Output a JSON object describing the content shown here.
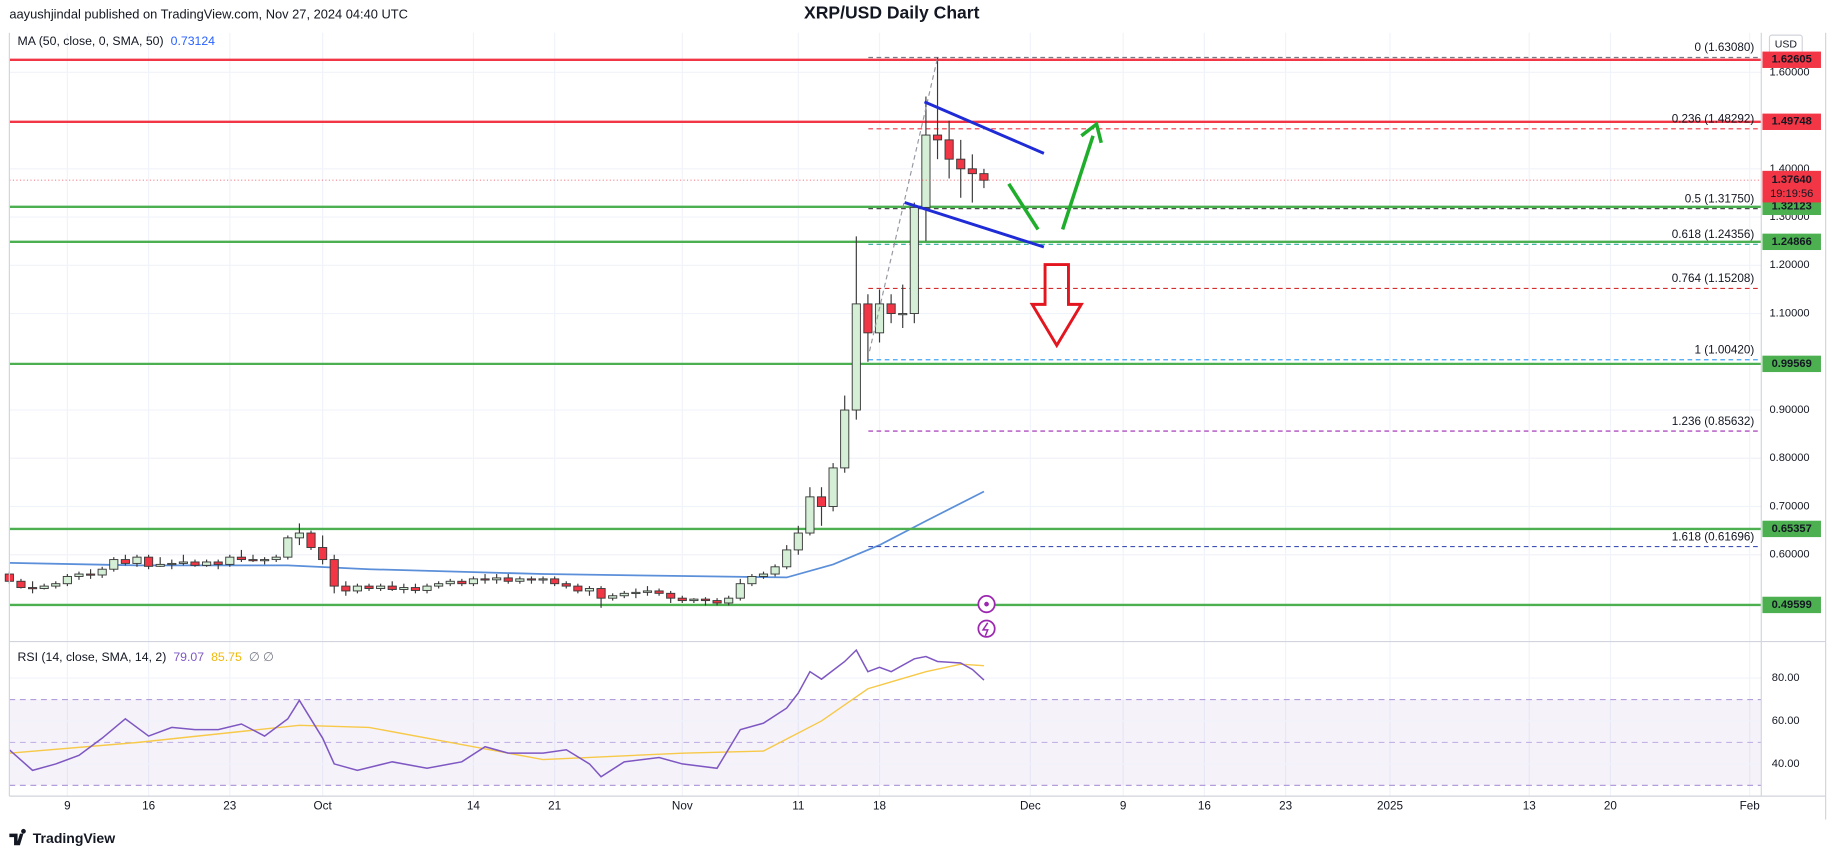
{
  "header": {
    "published": "aayushjindal published on TradingView.com, Nov 27, 2024 04:40 UTC",
    "currency": "USD",
    "brand": "TradingView"
  },
  "chart_data": {
    "type": "candlestick",
    "title": "XRP/USD Daily Chart",
    "grid": true,
    "up_color": "#d4efd6",
    "down_color": "#f23645",
    "outline_color": "#3a3a3a",
    "xlim": [
      "2024-09-04",
      "2025-02-02"
    ],
    "xticks": [
      {
        "value": "2024-09-09",
        "label": "9"
      },
      {
        "value": "2024-09-16",
        "label": "16"
      },
      {
        "value": "2024-09-23",
        "label": "23"
      },
      {
        "value": "2024-10-01",
        "label": "Oct"
      },
      {
        "value": "2024-10-14",
        "label": "14"
      },
      {
        "value": "2024-10-21",
        "label": "21"
      },
      {
        "value": "2024-11-01",
        "label": "Nov"
      },
      {
        "value": "2024-11-11",
        "label": "11"
      },
      {
        "value": "2024-11-18",
        "label": "18"
      },
      {
        "value": "2024-12-01",
        "label": "Dec"
      },
      {
        "value": "2024-12-09",
        "label": "9"
      },
      {
        "value": "2024-12-16",
        "label": "16"
      },
      {
        "value": "2024-12-23",
        "label": "23"
      },
      {
        "value": "2025-01-01",
        "label": "2025"
      },
      {
        "value": "2025-01-13",
        "label": "13"
      },
      {
        "value": "2025-01-20",
        "label": "20"
      },
      {
        "value": "2025-02-01",
        "label": "Feb"
      }
    ],
    "ylim": [
      0.42,
      1.682
    ],
    "yticks": [
      {
        "value": 1.6,
        "label": "1.60000"
      },
      {
        "value": 1.4,
        "label": "1.40000"
      },
      {
        "value": 1.3,
        "label": "1.30000"
      },
      {
        "value": 1.2,
        "label": "1.20000"
      },
      {
        "value": 1.1,
        "label": "1.10000"
      },
      {
        "value": 0.9,
        "label": "0.90000"
      },
      {
        "value": 0.8,
        "label": "0.80000"
      },
      {
        "value": 0.7,
        "label": "0.70000"
      },
      {
        "value": 0.6,
        "label": "0.60000"
      }
    ],
    "dates": [
      "2024-09-04",
      "2024-09-05",
      "2024-09-06",
      "2024-09-07",
      "2024-09-08",
      "2024-09-09",
      "2024-09-10",
      "2024-09-11",
      "2024-09-12",
      "2024-09-13",
      "2024-09-14",
      "2024-09-15",
      "2024-09-16",
      "2024-09-17",
      "2024-09-18",
      "2024-09-19",
      "2024-09-20",
      "2024-09-21",
      "2024-09-22",
      "2024-09-23",
      "2024-09-24",
      "2024-09-25",
      "2024-09-26",
      "2024-09-27",
      "2024-09-28",
      "2024-09-29",
      "2024-09-30",
      "2024-10-01",
      "2024-10-02",
      "2024-10-03",
      "2024-10-04",
      "2024-10-05",
      "2024-10-06",
      "2024-10-07",
      "2024-10-08",
      "2024-10-09",
      "2024-10-10",
      "2024-10-11",
      "2024-10-12",
      "2024-10-13",
      "2024-10-14",
      "2024-10-15",
      "2024-10-16",
      "2024-10-17",
      "2024-10-18",
      "2024-10-19",
      "2024-10-20",
      "2024-10-21",
      "2024-10-22",
      "2024-10-23",
      "2024-10-24",
      "2024-10-25",
      "2024-10-26",
      "2024-10-27",
      "2024-10-28",
      "2024-10-29",
      "2024-10-30",
      "2024-10-31",
      "2024-11-01",
      "2024-11-02",
      "2024-11-03",
      "2024-11-04",
      "2024-11-05",
      "2024-11-06",
      "2024-11-07",
      "2024-11-08",
      "2024-11-09",
      "2024-11-10",
      "2024-11-11",
      "2024-11-12",
      "2024-11-13",
      "2024-11-14",
      "2024-11-15",
      "2024-11-16",
      "2024-11-17",
      "2024-11-18",
      "2024-11-19",
      "2024-11-20",
      "2024-11-21",
      "2024-11-22",
      "2024-11-23",
      "2024-11-24",
      "2024-11-25",
      "2024-11-26",
      "2024-11-27"
    ],
    "candles": [
      [
        0.56,
        0.565,
        0.54,
        0.545
      ],
      [
        0.545,
        0.55,
        0.53,
        0.532
      ],
      [
        0.532,
        0.545,
        0.52,
        0.53
      ],
      [
        0.53,
        0.54,
        0.528,
        0.535
      ],
      [
        0.535,
        0.545,
        0.53,
        0.54
      ],
      [
        0.54,
        0.56,
        0.535,
        0.555
      ],
      [
        0.555,
        0.565,
        0.548,
        0.56
      ],
      [
        0.56,
        0.57,
        0.55,
        0.558
      ],
      [
        0.558,
        0.575,
        0.552,
        0.57
      ],
      [
        0.57,
        0.595,
        0.565,
        0.59
      ],
      [
        0.59,
        0.6,
        0.578,
        0.582
      ],
      [
        0.582,
        0.6,
        0.575,
        0.595
      ],
      [
        0.595,
        0.6,
        0.57,
        0.576
      ],
      [
        0.576,
        0.595,
        0.575,
        0.58
      ],
      [
        0.58,
        0.59,
        0.57,
        0.582
      ],
      [
        0.582,
        0.6,
        0.578,
        0.585
      ],
      [
        0.585,
        0.59,
        0.575,
        0.578
      ],
      [
        0.578,
        0.59,
        0.575,
        0.585
      ],
      [
        0.585,
        0.59,
        0.57,
        0.58
      ],
      [
        0.58,
        0.6,
        0.575,
        0.595
      ],
      [
        0.595,
        0.61,
        0.585,
        0.59
      ],
      [
        0.59,
        0.6,
        0.585,
        0.588
      ],
      [
        0.588,
        0.595,
        0.58,
        0.59
      ],
      [
        0.59,
        0.6,
        0.585,
        0.595
      ],
      [
        0.595,
        0.64,
        0.59,
        0.635
      ],
      [
        0.635,
        0.665,
        0.62,
        0.645
      ],
      [
        0.645,
        0.65,
        0.61,
        0.615
      ],
      [
        0.615,
        0.64,
        0.58,
        0.59
      ],
      [
        0.59,
        0.6,
        0.52,
        0.535
      ],
      [
        0.535,
        0.545,
        0.515,
        0.525
      ],
      [
        0.525,
        0.54,
        0.52,
        0.535
      ],
      [
        0.535,
        0.54,
        0.525,
        0.53
      ],
      [
        0.53,
        0.54,
        0.525,
        0.535
      ],
      [
        0.535,
        0.545,
        0.525,
        0.528
      ],
      [
        0.528,
        0.54,
        0.52,
        0.532
      ],
      [
        0.532,
        0.54,
        0.52,
        0.526
      ],
      [
        0.526,
        0.54,
        0.52,
        0.535
      ],
      [
        0.535,
        0.545,
        0.53,
        0.54
      ],
      [
        0.54,
        0.55,
        0.535,
        0.545
      ],
      [
        0.545,
        0.55,
        0.535,
        0.54
      ],
      [
        0.54,
        0.555,
        0.535,
        0.55
      ],
      [
        0.55,
        0.56,
        0.54,
        0.548
      ],
      [
        0.548,
        0.56,
        0.54,
        0.552
      ],
      [
        0.552,
        0.56,
        0.54,
        0.545
      ],
      [
        0.545,
        0.555,
        0.54,
        0.55
      ],
      [
        0.55,
        0.555,
        0.54,
        0.548
      ],
      [
        0.548,
        0.555,
        0.54,
        0.55
      ],
      [
        0.55,
        0.555,
        0.535,
        0.54
      ],
      [
        0.54,
        0.545,
        0.53,
        0.535
      ],
      [
        0.535,
        0.54,
        0.52,
        0.525
      ],
      [
        0.525,
        0.535,
        0.515,
        0.53
      ],
      [
        0.53,
        0.535,
        0.49,
        0.51
      ],
      [
        0.51,
        0.52,
        0.505,
        0.515
      ],
      [
        0.515,
        0.525,
        0.51,
        0.52
      ],
      [
        0.52,
        0.53,
        0.51,
        0.522
      ],
      [
        0.522,
        0.535,
        0.515,
        0.525
      ],
      [
        0.525,
        0.53,
        0.515,
        0.52
      ],
      [
        0.52,
        0.525,
        0.5,
        0.51
      ],
      [
        0.51,
        0.515,
        0.5,
        0.505
      ],
      [
        0.505,
        0.51,
        0.5,
        0.508
      ],
      [
        0.508,
        0.512,
        0.495,
        0.505
      ],
      [
        0.505,
        0.51,
        0.495,
        0.5
      ],
      [
        0.5,
        0.515,
        0.495,
        0.51
      ],
      [
        0.51,
        0.55,
        0.505,
        0.54
      ],
      [
        0.54,
        0.56,
        0.535,
        0.555
      ],
      [
        0.555,
        0.565,
        0.55,
        0.56
      ],
      [
        0.56,
        0.58,
        0.555,
        0.575
      ],
      [
        0.575,
        0.62,
        0.57,
        0.61
      ],
      [
        0.61,
        0.66,
        0.6,
        0.645
      ],
      [
        0.645,
        0.74,
        0.64,
        0.72
      ],
      [
        0.72,
        0.74,
        0.66,
        0.7
      ],
      [
        0.7,
        0.79,
        0.69,
        0.78
      ],
      [
        0.78,
        0.93,
        0.77,
        0.9
      ],
      [
        0.9,
        1.26,
        0.88,
        1.12
      ],
      [
        1.12,
        1.14,
        1.0,
        1.06
      ],
      [
        1.06,
        1.15,
        1.04,
        1.12
      ],
      [
        1.12,
        1.14,
        1.08,
        1.1
      ],
      [
        1.1,
        1.16,
        1.07,
        1.1
      ],
      [
        1.1,
        1.33,
        1.08,
        1.32
      ],
      [
        1.32,
        1.55,
        1.25,
        1.47
      ],
      [
        1.47,
        1.6308,
        1.42,
        1.46
      ],
      [
        1.46,
        1.5,
        1.38,
        1.42
      ],
      [
        1.42,
        1.46,
        1.34,
        1.4
      ],
      [
        1.4,
        1.43,
        1.33,
        1.39
      ],
      [
        1.39,
        1.4,
        1.36,
        1.3764
      ]
    ],
    "ma": {
      "name": "MA (50, close, 0, SMA, 50)",
      "color": "#5b8fd9",
      "x": [
        "2024-09-04",
        "2024-09-15",
        "2024-09-28",
        "2024-10-05",
        "2024-10-20",
        "2024-11-01",
        "2024-11-10",
        "2024-11-14",
        "2024-11-18",
        "2024-11-22",
        "2024-11-27"
      ],
      "values": [
        0.583,
        0.578,
        0.578,
        0.57,
        0.56,
        0.556,
        0.553,
        0.58,
        0.62,
        0.67,
        0.73124
      ]
    },
    "levels": [
      {
        "value": 1.62605,
        "color": "#f23645"
      },
      {
        "value": 1.49748,
        "color": "#f23645"
      },
      {
        "value": 1.32123,
        "color": "#4caf50"
      },
      {
        "value": 1.24866,
        "color": "#4caf50"
      },
      {
        "value": 0.99569,
        "color": "#4caf50"
      },
      {
        "value": 0.65357,
        "color": "#4caf50"
      },
      {
        "value": 0.49599,
        "color": "#4caf50"
      }
    ],
    "fibs": [
      {
        "label": "0 (1.63080)",
        "value": 1.6308,
        "color": "#787b86"
      },
      {
        "label": "0.236 (1.48292)",
        "value": 1.48292,
        "color": "#f23645"
      },
      {
        "label": "0.5 (1.31750)",
        "value": 1.3175,
        "color": "#4a4a4a"
      },
      {
        "label": "0.618 (1.24356)",
        "value": 1.24356,
        "color": "#22ab94"
      },
      {
        "label": "0.764 (1.15208)",
        "value": 1.15208,
        "color": "#d32f2f"
      },
      {
        "label": "1 (1.00420)",
        "value": 1.0042,
        "color": "#42a5f5"
      },
      {
        "label": "1.236 (0.85632)",
        "value": 0.85632,
        "color": "#9c27b0"
      },
      {
        "label": "1.618 (0.61696)",
        "value": 0.61696,
        "color": "#3f51b5"
      }
    ],
    "last_price": {
      "value": 1.3764,
      "label": "1.37640",
      "countdown": "19:19:56",
      "color": "#f23645"
    },
    "rsi": {
      "name": "RSI (14, close, SMA, 14, 2)",
      "color": "#7e57c2",
      "ma_color": "#f7c948",
      "extra": "∅ ∅",
      "ylim": [
        25,
        97
      ],
      "yticks": [
        {
          "value": 80,
          "label": "80.00"
        },
        {
          "value": 60,
          "label": "60.00"
        },
        {
          "value": 40,
          "label": "40.00"
        }
      ],
      "band": [
        30,
        70
      ],
      "mid": 50,
      "x": [
        "2024-09-04",
        "2024-09-06",
        "2024-09-08",
        "2024-09-10",
        "2024-09-12",
        "2024-09-14",
        "2024-09-16",
        "2024-09-18",
        "2024-09-20",
        "2024-09-22",
        "2024-09-24",
        "2024-09-26",
        "2024-09-28",
        "2024-09-29",
        "2024-10-01",
        "2024-10-02",
        "2024-10-04",
        "2024-10-07",
        "2024-10-10",
        "2024-10-13",
        "2024-10-15",
        "2024-10-17",
        "2024-10-20",
        "2024-10-22",
        "2024-10-24",
        "2024-10-25",
        "2024-10-27",
        "2024-10-30",
        "2024-11-01",
        "2024-11-04",
        "2024-11-06",
        "2024-11-08",
        "2024-11-10",
        "2024-11-11",
        "2024-11-12",
        "2024-11-13",
        "2024-11-15",
        "2024-11-16",
        "2024-11-17",
        "2024-11-18",
        "2024-11-19",
        "2024-11-21",
        "2024-11-22",
        "2024-11-23",
        "2024-11-25",
        "2024-11-26",
        "2024-11-27"
      ],
      "values": [
        46.6,
        37,
        40,
        44,
        52,
        61,
        53,
        57,
        56,
        56,
        58.6,
        53,
        61,
        69.6,
        52,
        40,
        37,
        41,
        38,
        41,
        48,
        45,
        45,
        46.6,
        40,
        34,
        41,
        43,
        40,
        38,
        56,
        59,
        66,
        73,
        83,
        79.5,
        87.7,
        93,
        83,
        85,
        83,
        89,
        90,
        87.7,
        87,
        84,
        79.07
      ],
      "ma_x": [
        "2024-09-04",
        "2024-09-15",
        "2024-09-29",
        "2024-10-05",
        "2024-10-20",
        "2024-11-01",
        "2024-11-08",
        "2024-11-13",
        "2024-11-17",
        "2024-11-22",
        "2024-11-25",
        "2024-11-27"
      ],
      "ma_values": [
        45,
        50,
        58,
        57,
        42,
        45,
        46,
        60,
        75,
        83,
        86.5,
        85.75
      ]
    }
  }
}
